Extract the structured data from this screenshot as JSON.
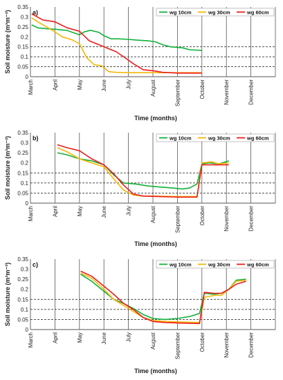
{
  "chart_data": [
    {
      "type": "line",
      "panel_label": "a)",
      "ylabel": "Soil moisture (m³m⁻³)",
      "xlabel": "Time (months)",
      "ylim": [
        0,
        0.35
      ],
      "yticks": [
        "0",
        "0.05",
        "0.1",
        "0.15",
        "0.2",
        "0.25",
        "0.3",
        "0.35"
      ],
      "months": [
        "March",
        "April",
        "May",
        "June",
        "July",
        "August",
        "September",
        "October",
        "November",
        "December"
      ],
      "x_unit": "month index (0 = March)",
      "dashed_lines": [
        0.05,
        0.1,
        0.15
      ],
      "legend": "top-right",
      "series": [
        {
          "name": "wg 10cm",
          "color": "#11b03a",
          "points": [
            [
              0.05,
              0.26
            ],
            [
              0.3,
              0.245
            ],
            [
              0.7,
              0.24
            ],
            [
              1.0,
              0.238
            ],
            [
              1.5,
              0.232
            ],
            [
              2.0,
              0.21
            ],
            [
              2.2,
              0.225
            ],
            [
              2.45,
              0.233
            ],
            [
              2.8,
              0.222
            ],
            [
              3.0,
              0.205
            ],
            [
              3.3,
              0.19
            ],
            [
              3.6,
              0.19
            ],
            [
              4.0,
              0.187
            ],
            [
              4.4,
              0.183
            ],
            [
              4.8,
              0.18
            ],
            [
              5.1,
              0.175
            ],
            [
              5.4,
              0.16
            ],
            [
              5.7,
              0.15
            ],
            [
              6.2,
              0.145
            ],
            [
              6.5,
              0.135
            ],
            [
              7.0,
              0.132
            ]
          ]
        },
        {
          "name": "wg 30cm",
          "color": "#f2b705",
          "points": [
            [
              0.05,
              0.295
            ],
            [
              0.4,
              0.268
            ],
            [
              1.0,
              0.225
            ],
            [
              1.3,
              0.2
            ],
            [
              1.7,
              0.185
            ],
            [
              2.0,
              0.165
            ],
            [
              2.3,
              0.095
            ],
            [
              2.6,
              0.06
            ],
            [
              2.9,
              0.055
            ],
            [
              3.2,
              0.025
            ],
            [
              3.5,
              0.022
            ],
            [
              4.0,
              0.02
            ],
            [
              5.0,
              0.02
            ],
            [
              6.0,
              0.02
            ],
            [
              7.0,
              0.02
            ]
          ]
        },
        {
          "name": "wg 60cm",
          "color": "#ee1c1c",
          "points": [
            [
              0.05,
              0.315
            ],
            [
              0.5,
              0.285
            ],
            [
              1.0,
              0.275
            ],
            [
              1.5,
              0.245
            ],
            [
              2.0,
              0.228
            ],
            [
              2.4,
              0.18
            ],
            [
              2.8,
              0.16
            ],
            [
              3.2,
              0.14
            ],
            [
              3.5,
              0.125
            ],
            [
              3.8,
              0.1
            ],
            [
              4.2,
              0.065
            ],
            [
              4.6,
              0.035
            ],
            [
              5.0,
              0.03
            ],
            [
              5.4,
              0.022
            ],
            [
              6.0,
              0.018
            ],
            [
              7.0,
              0.018
            ]
          ]
        }
      ]
    },
    {
      "type": "line",
      "panel_label": "b)",
      "ylabel": "Soil moisture (m³m⁻³)",
      "xlabel": "Time (months)",
      "ylim": [
        0,
        0.35
      ],
      "yticks": [
        "0",
        "0.05",
        "0.1",
        "0.15",
        "0.2",
        "0.25",
        "0.3",
        "0.35"
      ],
      "months": [
        "March",
        "April",
        "May",
        "June",
        "July",
        "August",
        "September",
        "October",
        "November",
        "December"
      ],
      "x_unit": "month index (0 = March)",
      "dashed_lines": [
        0.05,
        0.1,
        0.15
      ],
      "legend": "top-right",
      "series": [
        {
          "name": "wg 10cm",
          "color": "#11b03a",
          "points": [
            [
              1.1,
              0.25
            ],
            [
              1.5,
              0.24
            ],
            [
              2.0,
              0.22
            ],
            [
              2.5,
              0.21
            ],
            [
              3.0,
              0.19
            ],
            [
              3.4,
              0.14
            ],
            [
              3.8,
              0.1
            ],
            [
              4.3,
              0.095
            ],
            [
              4.8,
              0.085
            ],
            [
              5.3,
              0.08
            ],
            [
              5.8,
              0.075
            ],
            [
              6.2,
              0.07
            ],
            [
              6.5,
              0.075
            ],
            [
              6.8,
              0.095
            ],
            [
              7.0,
              0.195
            ],
            [
              7.3,
              0.2
            ],
            [
              7.7,
              0.195
            ],
            [
              8.1,
              0.21
            ]
          ]
        },
        {
          "name": "wg 30cm",
          "color": "#f2b705",
          "points": [
            [
              1.1,
              0.275
            ],
            [
              1.5,
              0.255
            ],
            [
              2.0,
              0.22
            ],
            [
              2.5,
              0.2
            ],
            [
              3.0,
              0.18
            ],
            [
              3.4,
              0.12
            ],
            [
              3.8,
              0.065
            ],
            [
              4.2,
              0.04
            ],
            [
              4.6,
              0.035
            ],
            [
              5.0,
              0.035
            ],
            [
              6.0,
              0.033
            ],
            [
              6.8,
              0.033
            ],
            [
              7.0,
              0.2
            ],
            [
              7.4,
              0.205
            ],
            [
              7.7,
              0.195
            ],
            [
              8.1,
              0.2
            ]
          ]
        },
        {
          "name": "wg 60cm",
          "color": "#ee1c1c",
          "points": [
            [
              1.1,
              0.29
            ],
            [
              1.5,
              0.275
            ],
            [
              2.0,
              0.26
            ],
            [
              2.5,
              0.22
            ],
            [
              3.0,
              0.19
            ],
            [
              3.4,
              0.145
            ],
            [
              3.8,
              0.09
            ],
            [
              4.2,
              0.045
            ],
            [
              4.6,
              0.035
            ],
            [
              5.2,
              0.033
            ],
            [
              6.0,
              0.03
            ],
            [
              6.8,
              0.03
            ],
            [
              7.0,
              0.19
            ],
            [
              7.6,
              0.19
            ],
            [
              8.1,
              0.19
            ]
          ]
        }
      ]
    },
    {
      "type": "line",
      "panel_label": "c)",
      "ylabel": "Soil moisture (m³m⁻³)",
      "xlabel": "Time (months)",
      "ylim": [
        0,
        0.35
      ],
      "yticks": [
        "0",
        "0.05",
        "0.1",
        "0.15",
        "0.2",
        "0.25",
        "0.3",
        "0.35"
      ],
      "months": [
        "March",
        "April",
        "May",
        "June",
        "July",
        "August",
        "September",
        "October",
        "November",
        "December"
      ],
      "x_unit": "month index (0 = March)",
      "dashed_lines": [
        0.05,
        0.1,
        0.15
      ],
      "legend": "top-right",
      "series": [
        {
          "name": "wg 10cm",
          "color": "#11b03a",
          "points": [
            [
              2.05,
              0.275
            ],
            [
              2.5,
              0.24
            ],
            [
              3.0,
              0.19
            ],
            [
              3.4,
              0.15
            ],
            [
              3.8,
              0.13
            ],
            [
              4.2,
              0.105
            ],
            [
              4.6,
              0.075
            ],
            [
              5.0,
              0.055
            ],
            [
              5.5,
              0.05
            ],
            [
              6.0,
              0.055
            ],
            [
              6.5,
              0.065
            ],
            [
              6.9,
              0.08
            ],
            [
              7.1,
              0.18
            ],
            [
              7.5,
              0.175
            ],
            [
              7.8,
              0.18
            ],
            [
              8.1,
              0.2
            ],
            [
              8.4,
              0.245
            ],
            [
              8.8,
              0.25
            ]
          ]
        },
        {
          "name": "wg 30cm",
          "color": "#f2b705",
          "points": [
            [
              2.05,
              0.28
            ],
            [
              2.5,
              0.255
            ],
            [
              3.0,
              0.2
            ],
            [
              3.4,
              0.15
            ],
            [
              3.8,
              0.12
            ],
            [
              4.2,
              0.09
            ],
            [
              4.6,
              0.06
            ],
            [
              5.0,
              0.045
            ],
            [
              5.5,
              0.04
            ],
            [
              6.0,
              0.038
            ],
            [
              6.9,
              0.035
            ],
            [
              7.1,
              0.16
            ],
            [
              7.5,
              0.17
            ],
            [
              7.8,
              0.17
            ],
            [
              8.1,
              0.2
            ],
            [
              8.4,
              0.24
            ],
            [
              8.8,
              0.245
            ]
          ]
        },
        {
          "name": "wg 60cm",
          "color": "#ee1c1c",
          "points": [
            [
              2.05,
              0.29
            ],
            [
              2.5,
              0.265
            ],
            [
              3.0,
              0.215
            ],
            [
              3.4,
              0.175
            ],
            [
              3.8,
              0.13
            ],
            [
              4.2,
              0.1
            ],
            [
              4.6,
              0.06
            ],
            [
              5.0,
              0.04
            ],
            [
              5.5,
              0.035
            ],
            [
              6.0,
              0.033
            ],
            [
              6.9,
              0.03
            ],
            [
              7.1,
              0.185
            ],
            [
              7.5,
              0.18
            ],
            [
              7.8,
              0.18
            ],
            [
              8.1,
              0.2
            ],
            [
              8.4,
              0.225
            ],
            [
              8.8,
              0.24
            ]
          ]
        }
      ]
    }
  ]
}
